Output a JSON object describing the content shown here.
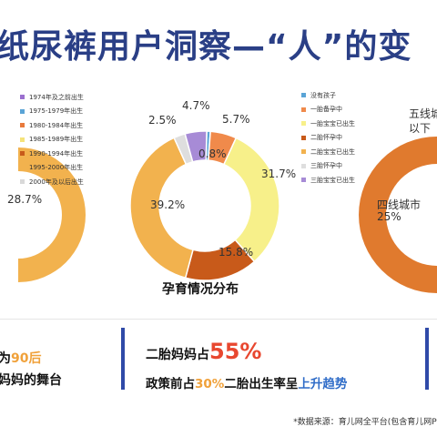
{
  "header": {
    "title": "纸尿裤用户洞察—“人”的变"
  },
  "left_chart": {
    "legend": [
      {
        "label": "1974年及之前出生",
        "color": "#9b6fcf"
      },
      {
        "label": "1975-1979年出生",
        "color": "#5aa4d6"
      },
      {
        "label": "1980-1984年出生",
        "color": "#e87a3c"
      },
      {
        "label": "1985-1989年出生",
        "color": "#f5e37a"
      },
      {
        "label": "1990-1994年出生",
        "color": "#c85a1a"
      },
      {
        "label": "1995-2000年出生",
        "color": "#f2b24e"
      },
      {
        "label": "2000年及以后出生",
        "color": "#d9d9d9"
      }
    ],
    "visible_value": "28.7%"
  },
  "chart_data": {
    "type": "pie",
    "title": "孕育情况分布",
    "donut": true,
    "categories": [
      "没有孩子",
      "一胎备孕中",
      "一胎宝宝已出生",
      "二胎怀孕中",
      "二胎宝宝已出生",
      "三胎怀孕中",
      "三胎宝宝已出生"
    ],
    "values": [
      0.8,
      5.7,
      31.7,
      15.8,
      39.2,
      2.5,
      4.7
    ],
    "labels": [
      "0.8%",
      "5.7%",
      "31.7%",
      "15.8%",
      "39.2%",
      "2.5%",
      "4.7%"
    ],
    "colors": [
      "#5aa4d6",
      "#f08a4b",
      "#f7f08a",
      "#c85a1a",
      "#f2b24e",
      "#dedede",
      "#a78bd6"
    ],
    "legend_position": "right"
  },
  "right_chart": {
    "label_1": "五线城",
    "label_2": "以下",
    "label_3": "四线城市",
    "value_3": "25%"
  },
  "bottom": {
    "left_line1_prefix": "为",
    "left_line1_highlight": "90后",
    "left_line2": "妈妈的舞台",
    "mid_line1_prefix": "二胎妈妈占",
    "mid_line1_highlight": "55%",
    "mid_line2_a": "政策前占",
    "mid_line2_b": "30%",
    "mid_line2_c": "二胎出生率呈",
    "mid_line2_d": "上升趋势",
    "source": "*数据来源：育儿网全平台(包含育儿网PC"
  }
}
